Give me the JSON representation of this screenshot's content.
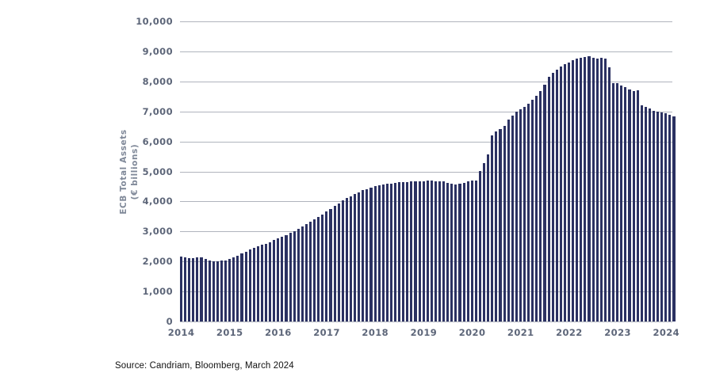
{
  "source_note": "Source: Candriam, Bloomberg, March 2024",
  "colors": {
    "bar": "#2b3162",
    "gridline": "#b0b4bd",
    "tick_label": "#5d6679",
    "axis_title": "#7f8898",
    "background": "#ffffff"
  },
  "chart_data": {
    "type": "bar",
    "title": "",
    "y_axis_title_line1": "ECB Total Assets",
    "y_axis_title_line2": "(€ billions)",
    "ylabel": "ECB Total Assets (€ billions)",
    "ylim": [
      0,
      10000
    ],
    "grid": true,
    "legend": "none",
    "y_ticks": [
      0,
      1000,
      2000,
      3000,
      4000,
      5000,
      6000,
      7000,
      8000,
      9000,
      10000
    ],
    "y_tick_labels": [
      "0",
      "1,000",
      "2,000",
      "3,000",
      "4,000",
      "5,000",
      "6,000",
      "7,000",
      "8,000",
      "9,000",
      "10,000"
    ],
    "x_tick_labels": [
      "2014",
      "2015",
      "2016",
      "2017",
      "2018",
      "2019",
      "2020",
      "2021",
      "2022",
      "2023",
      "2024"
    ],
    "frequency": "monthly",
    "period": "Jan 2014 - Mar 2024",
    "months_per_year": 12,
    "series": [
      {
        "name": "ECB Total Assets (€ billions)",
        "values": [
          2170,
          2140,
          2115,
          2125,
          2145,
          2130,
          2090,
          2045,
          2010,
          2005,
          2020,
          2045,
          2090,
          2140,
          2200,
          2270,
          2330,
          2390,
          2450,
          2500,
          2550,
          2600,
          2650,
          2710,
          2770,
          2830,
          2890,
          2950,
          3020,
          3090,
          3160,
          3240,
          3320,
          3400,
          3480,
          3570,
          3660,
          3760,
          3850,
          3940,
          4030,
          4110,
          4180,
          4250,
          4310,
          4370,
          4420,
          4470,
          4500,
          4530,
          4555,
          4580,
          4600,
          4620,
          4640,
          4650,
          4655,
          4660,
          4665,
          4670,
          4680,
          4685,
          4690,
          4680,
          4670,
          4660,
          4630,
          4600,
          4570,
          4590,
          4630,
          4670,
          4700,
          4710,
          5020,
          5270,
          5570,
          6190,
          6340,
          6410,
          6520,
          6720,
          6860,
          6990,
          7080,
          7160,
          7250,
          7380,
          7520,
          7680,
          7900,
          8150,
          8280,
          8400,
          8500,
          8570,
          8640,
          8700,
          8760,
          8790,
          8810,
          8830,
          8800,
          8760,
          8790,
          8770,
          8460,
          7950,
          7950,
          7870,
          7800,
          7720,
          7690,
          7710,
          7210,
          7140,
          7100,
          7030,
          6990,
          6960,
          6930,
          6880,
          6830
        ]
      }
    ]
  }
}
